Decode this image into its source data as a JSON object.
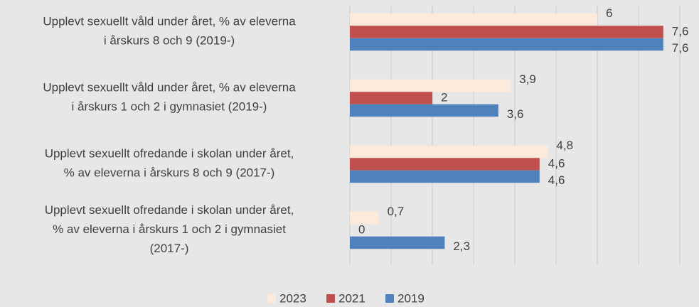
{
  "chart_data": {
    "type": "barh",
    "categories": [
      "Upplevt sexuellt våld under året, % av eleverna\ni årskurs 8 och 9 (2019-)",
      "Upplevt sexuellt våld under året, % av eleverna\ni årskurs 1 och 2 i gymnasiet (2019-)",
      "Upplevt sexuellt ofredande i skolan under året,\n% av eleverna i årskurs 8 och 9 (2017-)",
      "Upplevt sexuellt ofredande i skolan under året,\n% av eleverna i årskurs 1 och 2 i gymnasiet\n(2017-)"
    ],
    "series": [
      {
        "name": "2023",
        "color": "#fdeadb",
        "values": [
          6,
          3.9,
          4.8,
          0.7
        ],
        "value_labels": [
          "6",
          "3,9",
          "4,8",
          "0,7"
        ]
      },
      {
        "name": "2021",
        "color": "#c0504d",
        "values": [
          7.6,
          2,
          4.6,
          0
        ],
        "value_labels": [
          "7,6",
          "2",
          "4,6",
          "0"
        ]
      },
      {
        "name": "2019",
        "color": "#4f81bd",
        "values": [
          7.6,
          3.6,
          4.6,
          2.3
        ],
        "value_labels": [
          "7,6",
          "3,6",
          "4,6",
          "2,3"
        ]
      }
    ],
    "xlim": [
      0,
      8
    ],
    "xticks": [
      0,
      1,
      2,
      3,
      4,
      5,
      6,
      7,
      8
    ],
    "grid": true,
    "legend": "bottom"
  }
}
